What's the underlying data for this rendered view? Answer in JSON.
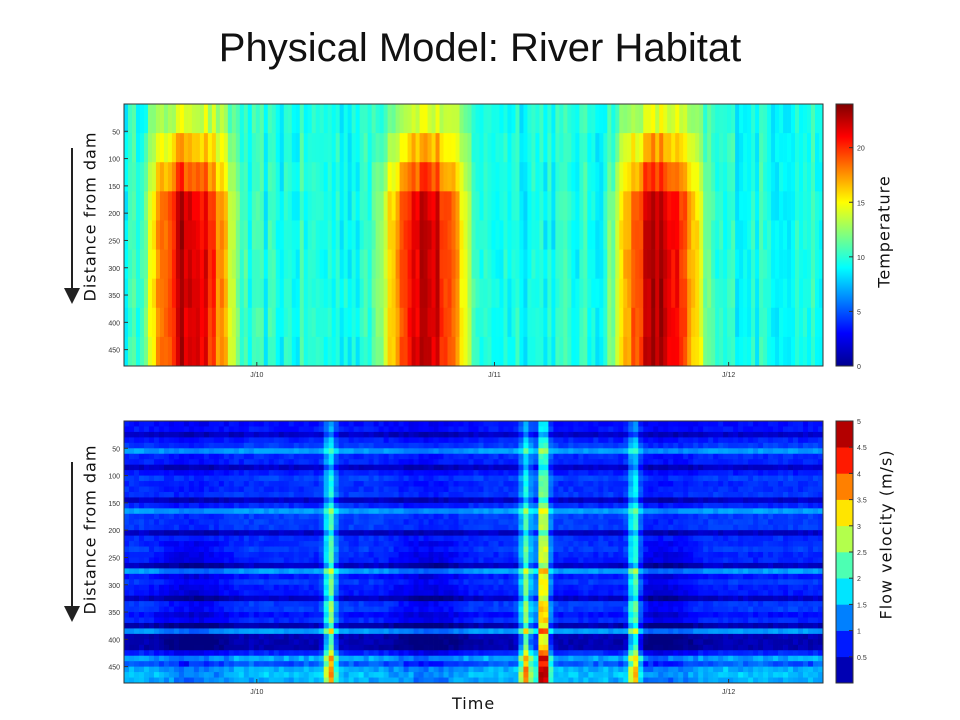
{
  "slide": {
    "title": "Physical Model: River Habitat",
    "x_axis_label": "Time",
    "arrow_label": "Distance from dam"
  },
  "colormap": "jet",
  "chart_data": [
    {
      "type": "heatmap",
      "title": "",
      "ylabel": "Distance from dam",
      "xlabel": "",
      "y_ticks": [
        50,
        100,
        150,
        200,
        250,
        300,
        350,
        400,
        450
      ],
      "y_range": [
        0,
        480
      ],
      "y_direction": "down",
      "x_ticks": [
        "J/10",
        "J/11",
        "J/12"
      ],
      "colorbar": {
        "label": "Temperature",
        "range": [
          0,
          24
        ],
        "ticks": [
          0,
          5,
          10,
          15,
          20
        ]
      },
      "pattern": "Seasonal cycle: ~22 deg C in each summer (peaks before J/10, J/11, J/12), ~10 deg C in winter; warming increases with distance downstream of the dam."
    },
    {
      "type": "heatmap",
      "title": "",
      "ylabel": "Distance from dam",
      "xlabel": "Time",
      "y_ticks": [
        50,
        100,
        150,
        200,
        250,
        300,
        350,
        400,
        450
      ],
      "y_range": [
        0,
        480
      ],
      "y_direction": "down",
      "x_ticks": [
        "J/10",
        "J/12"
      ],
      "colorbar": {
        "label": "Flow velocity (m/s)",
        "range": [
          0,
          5
        ],
        "ticks": [
          0.5,
          1,
          1.5,
          2,
          2.5,
          3,
          3.5,
          4,
          4.5,
          5
        ]
      },
      "pattern": "Mostly 0.5-1.5 m/s with low-velocity reaches (<0.5 m/s) near 380-420; high-flow events >3.5 m/s at mid-record with elevated velocity along lower reaches."
    }
  ]
}
